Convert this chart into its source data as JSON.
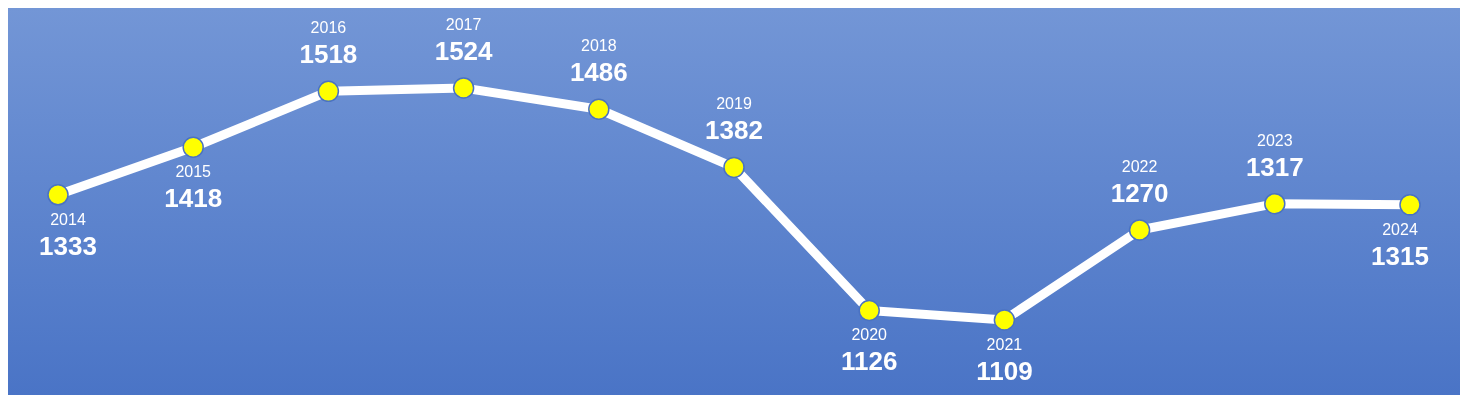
{
  "chart_data": {
    "type": "line",
    "categories": [
      "2014",
      "2015",
      "2016",
      "2017",
      "2018",
      "2019",
      "2020",
      "2021",
      "2022",
      "2023",
      "2024"
    ],
    "series": [
      {
        "color": "#ffffff",
        "values": [
          1333,
          1418,
          1518,
          1524,
          1486,
          1382,
          1126,
          1109,
          1270,
          1317,
          1315
        ]
      }
    ],
    "marker": "circle",
    "data_labels": true
  }
}
